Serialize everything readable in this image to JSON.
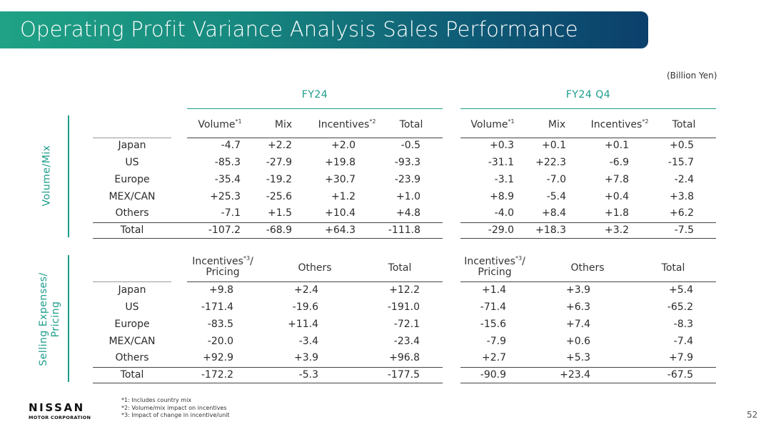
{
  "title": "Operating Profit Variance Analysis Sales Performance",
  "unit_note": "(Billion Yen)",
  "periods": [
    "FY24",
    "FY24 Q4"
  ],
  "volume_mix": {
    "label": "Volume/Mix",
    "headers": [
      {
        "text": "Volume",
        "sup": "*1"
      },
      {
        "text": "Mix",
        "sup": ""
      },
      {
        "text": "Incentives",
        "sup": "*2"
      },
      {
        "text": "Total",
        "sup": ""
      }
    ],
    "rows": [
      {
        "label": "Japan",
        "fy24": [
          "-4.7",
          "+2.2",
          "+2.0",
          "-0.5"
        ],
        "q4": [
          "+0.3",
          "+0.1",
          "+0.1",
          "+0.5"
        ]
      },
      {
        "label": "US",
        "fy24": [
          "-85.3",
          "-27.9",
          "+19.8",
          "-93.3"
        ],
        "q4": [
          "-31.1",
          "+22.3",
          "-6.9",
          "-15.7"
        ]
      },
      {
        "label": "Europe",
        "fy24": [
          "-35.4",
          "-19.2",
          "+30.7",
          "-23.9"
        ],
        "q4": [
          "-3.1",
          "-7.0",
          "+7.8",
          "-2.4"
        ]
      },
      {
        "label": "MEX/CAN",
        "fy24": [
          "+25.3",
          "-25.6",
          "+1.2",
          "+1.0"
        ],
        "q4": [
          "+8.9",
          "-5.4",
          "+0.4",
          "+3.8"
        ]
      },
      {
        "label": "Others",
        "fy24": [
          "-7.1",
          "+1.5",
          "+10.4",
          "+4.8"
        ],
        "q4": [
          "-4.0",
          "+8.4",
          "+1.8",
          "+6.2"
        ]
      },
      {
        "label": "Total",
        "fy24": [
          "-107.2",
          "-68.9",
          "+64.3",
          "-111.8"
        ],
        "q4": [
          "-29.0",
          "+18.3",
          "+3.2",
          "-7.5"
        ]
      }
    ]
  },
  "selling": {
    "label_line1": "Selling Expenses/",
    "label_line2": "Pricing",
    "headers": [
      {
        "line1": "Incentives",
        "sup": "*3",
        "after": "/",
        "line2": "Pricing"
      },
      {
        "line1": "Others",
        "sup": "",
        "after": "",
        "line2": ""
      },
      {
        "line1": "Total",
        "sup": "",
        "after": "",
        "line2": ""
      }
    ],
    "rows": [
      {
        "label": "Japan",
        "fy24": [
          "+9.8",
          "+2.4",
          "+12.2"
        ],
        "q4": [
          "+1.4",
          "+3.9",
          "+5.4"
        ]
      },
      {
        "label": "US",
        "fy24": [
          "-171.4",
          "-19.6",
          "-191.0"
        ],
        "q4": [
          "-71.4",
          "+6.3",
          "-65.2"
        ]
      },
      {
        "label": "Europe",
        "fy24": [
          "-83.5",
          "+11.4",
          "-72.1"
        ],
        "q4": [
          "-15.6",
          "+7.4",
          "-8.3"
        ]
      },
      {
        "label": "MEX/CAN",
        "fy24": [
          "-20.0",
          "-3.4",
          "-23.4"
        ],
        "q4": [
          "-7.9",
          "+0.6",
          "-7.4"
        ]
      },
      {
        "label": "Others",
        "fy24": [
          "+92.9",
          "+3.9",
          "+96.8"
        ],
        "q4": [
          "+2.7",
          "+5.3",
          "+7.9"
        ]
      },
      {
        "label": "Total",
        "fy24": [
          "-172.2",
          "-5.3",
          "-177.5"
        ],
        "q4": [
          "-90.9",
          "+23.4",
          "-67.5"
        ]
      }
    ]
  },
  "footnotes": [
    "*1: Includes country mix",
    "*2: Volume/mix impact on incentives",
    "*3: Impact of change in incentive/unit"
  ],
  "logo": {
    "line1": "NISSAN",
    "line2": "MOTOR CORPORATION"
  },
  "page_number": "52"
}
